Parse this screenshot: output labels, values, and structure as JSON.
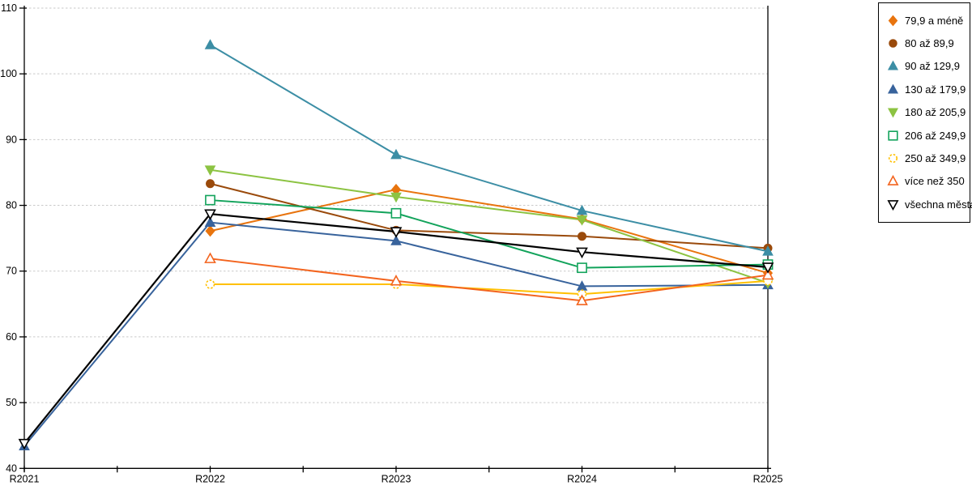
{
  "chart_data": {
    "type": "line",
    "title": "",
    "xlabel": "",
    "ylabel": "",
    "categories": [
      "R2021",
      "R2022",
      "R2023",
      "R2024",
      "R2025"
    ],
    "ylim": [
      40,
      110
    ],
    "ytick_step": 10,
    "ytick_labels": [
      "40",
      "50",
      "60",
      "70",
      "80",
      "90",
      "100",
      "110"
    ],
    "grid": "horizontal-dashed",
    "legend_position": "right",
    "colors": {
      "axis": "#000000",
      "grid": "#c9c9c9",
      "background": "#ffffff"
    },
    "series": [
      {
        "name": "79,9 a méně",
        "color": "#E8740E",
        "marker": "diamond",
        "fill": "filled",
        "values": [
          null,
          76.1,
          82.4,
          77.9,
          69.7
        ]
      },
      {
        "name": "80 až 89,9",
        "color": "#9A4A0B",
        "marker": "circle",
        "fill": "filled",
        "values": [
          null,
          83.3,
          76.2,
          75.3,
          73.5
        ]
      },
      {
        "name": "90 až 129,9",
        "color": "#3C8EA5",
        "marker": "triangle-up",
        "fill": "filled",
        "values": [
          null,
          104.4,
          87.7,
          79.2,
          73.0
        ]
      },
      {
        "name": "130 až 179,9",
        "color": "#38639C",
        "marker": "triangle-up",
        "fill": "filled",
        "values": [
          43.4,
          77.4,
          74.6,
          67.7,
          67.9
        ]
      },
      {
        "name": "180 až 205,9",
        "color": "#8CC342",
        "marker": "triangle-down",
        "fill": "filled",
        "values": [
          null,
          85.4,
          81.3,
          77.8,
          68.2
        ]
      },
      {
        "name": "206 až 249,9",
        "color": "#12A35B",
        "marker": "square",
        "fill": "open",
        "values": [
          null,
          80.8,
          78.8,
          70.5,
          71.0
        ]
      },
      {
        "name": "250 až 349,9",
        "color": "#FFC000",
        "marker": "circle",
        "fill": "open",
        "dashed_marker": true,
        "values": [
          null,
          68.0,
          68.0,
          66.5,
          68.5
        ]
      },
      {
        "name": "více než 350",
        "color": "#F3641E",
        "marker": "triangle-up",
        "fill": "open",
        "values": [
          null,
          71.9,
          68.5,
          65.5,
          69.4
        ]
      },
      {
        "name": "všechna města",
        "color": "#000000",
        "marker": "triangle-down",
        "fill": "open",
        "values": [
          43.8,
          78.7,
          76.0,
          72.9,
          70.6
        ]
      }
    ]
  }
}
